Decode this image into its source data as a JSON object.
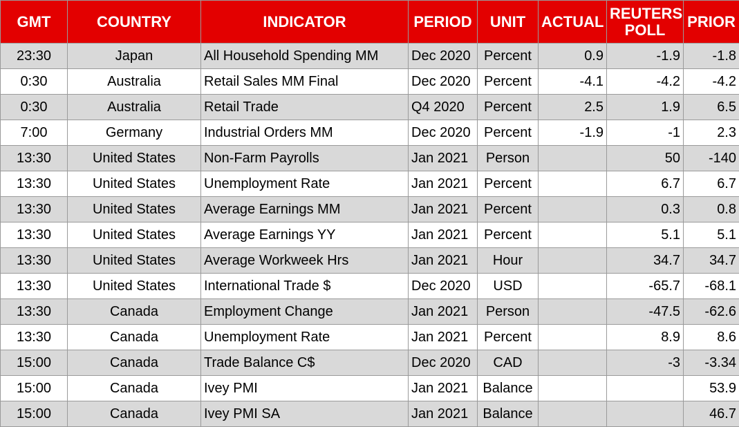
{
  "table": {
    "headers": [
      "GMT",
      "COUNTRY",
      "INDICATOR",
      "PERIOD",
      "UNIT",
      "ACTUAL",
      "REUTERS POLL",
      "PRIOR"
    ],
    "rows": [
      [
        "23:30",
        "Japan",
        "All Household Spending MM",
        "Dec 2020",
        "Percent",
        "0.9",
        "-1.9",
        "-1.8"
      ],
      [
        "0:30",
        "Australia",
        "Retail Sales MM Final",
        "Dec 2020",
        "Percent",
        "-4.1",
        "-4.2",
        "-4.2"
      ],
      [
        "0:30",
        "Australia",
        "Retail Trade",
        "Q4 2020",
        "Percent",
        "2.5",
        "1.9",
        "6.5"
      ],
      [
        "7:00",
        "Germany",
        "Industrial Orders MM",
        "Dec 2020",
        "Percent",
        "-1.9",
        "-1",
        "2.3"
      ],
      [
        "13:30",
        "United States",
        "Non-Farm Payrolls",
        "Jan 2021",
        "Person",
        null,
        "50",
        "-140"
      ],
      [
        "13:30",
        "United States",
        "Unemployment Rate",
        "Jan 2021",
        "Percent",
        null,
        "6.7",
        "6.7"
      ],
      [
        "13:30",
        "United States",
        "Average Earnings MM",
        "Jan 2021",
        "Percent",
        null,
        "0.3",
        "0.8"
      ],
      [
        "13:30",
        "United States",
        "Average Earnings YY",
        "Jan 2021",
        "Percent",
        null,
        "5.1",
        "5.1"
      ],
      [
        "13:30",
        "United States",
        "Average Workweek Hrs",
        "Jan 2021",
        "Hour",
        null,
        "34.7",
        "34.7"
      ],
      [
        "13:30",
        "United States",
        "International Trade $",
        "Dec 2020",
        "USD",
        null,
        "-65.7",
        "-68.1"
      ],
      [
        "13:30",
        "Canada",
        "Employment Change",
        "Jan 2021",
        "Person",
        null,
        "-47.5",
        "-62.6"
      ],
      [
        "13:30",
        "Canada",
        "Unemployment Rate",
        "Jan 2021",
        "Percent",
        null,
        "8.9",
        "8.6"
      ],
      [
        "15:00",
        "Canada",
        "Trade Balance C$",
        "Dec 2020",
        "CAD",
        null,
        "-3",
        "-3.34"
      ],
      [
        "15:00",
        "Canada",
        "Ivey PMI",
        "Jan 2021",
        "Balance",
        null,
        null,
        "53.9"
      ],
      [
        "15:00",
        "Canada",
        "Ivey PMI SA",
        "Jan 2021",
        "Balance",
        null,
        null,
        "46.7"
      ]
    ]
  }
}
